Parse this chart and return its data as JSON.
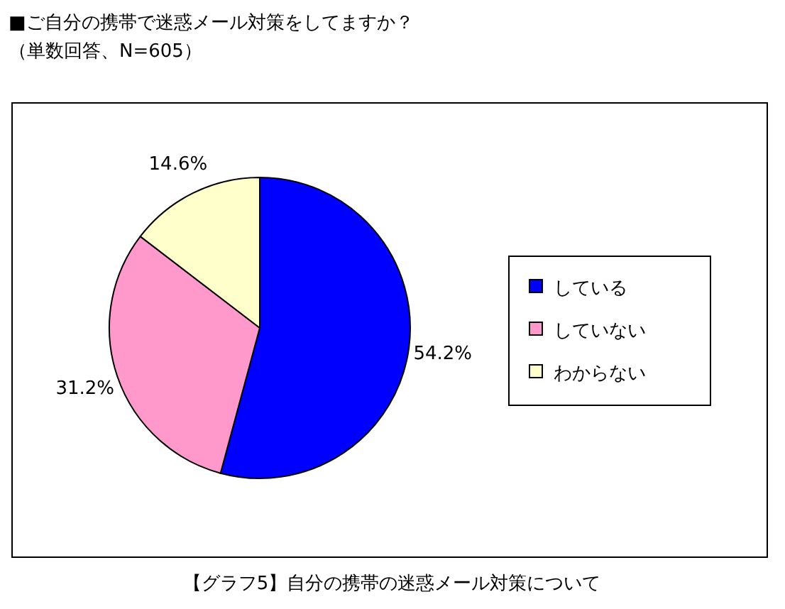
{
  "chart_data": {
    "type": "pie",
    "title": "■ご自分の携帯で迷惑メール対策をしてますか？",
    "subtitle": "（単数回答、N=605）",
    "categories": [
      "している",
      "していない",
      "わからない"
    ],
    "values": [
      54.2,
      31.2,
      14.6
    ],
    "colors": [
      "#0000ff",
      "#ff99cc",
      "#ffffcc"
    ],
    "value_labels": [
      "54.2%",
      "31.2%",
      "14.6%"
    ],
    "legend": "right",
    "annotations": [
      "【グラフ5】自分の携帯の迷惑メール対策について"
    ]
  }
}
